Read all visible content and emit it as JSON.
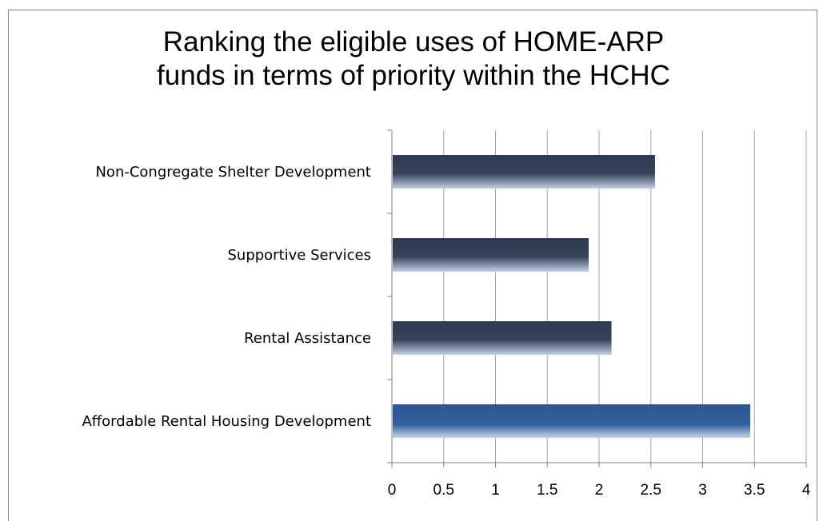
{
  "chart_data": {
    "type": "bar",
    "orientation": "horizontal",
    "title_lines": [
      "Ranking the eligible uses of HOME-ARP",
      "funds in terms of priority within the HCHC"
    ],
    "categories": [
      "Non-Congregate Shelter Development",
      "Supportive Services",
      "Rental Assistance",
      "Affordable Rental Housing Development"
    ],
    "values": [
      2.54,
      1.9,
      2.12,
      3.46
    ],
    "xlim": [
      0,
      4
    ],
    "xticks": [
      "0",
      "0.5",
      "1",
      "1.5",
      "2",
      "2.5",
      "3",
      "3.5",
      "4"
    ],
    "grid": "vertical",
    "legend": "none",
    "colors": {
      "bar": "#2d3a4f",
      "highlight_bar": "#2c5593",
      "gridline": "#a6a6a6",
      "axis": "#808080"
    },
    "highlight_index": 3
  }
}
